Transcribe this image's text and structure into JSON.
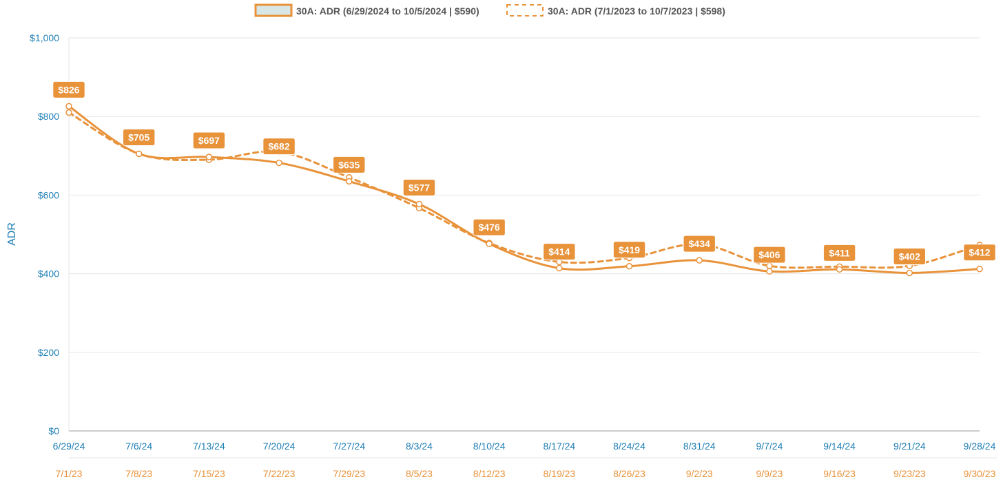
{
  "chart_data": {
    "type": "line",
    "ylabel": "ADR",
    "ylim": [
      0,
      1000
    ],
    "yticks": [
      "$0",
      "$200",
      "$400",
      "$600",
      "$800",
      "$1,000"
    ],
    "yticks_values": [
      0,
      200,
      400,
      600,
      800,
      1000
    ],
    "x_primary": [
      "6/29/24",
      "7/6/24",
      "7/13/24",
      "7/20/24",
      "7/27/24",
      "8/3/24",
      "8/10/24",
      "8/17/24",
      "8/24/24",
      "8/31/24",
      "9/7/24",
      "9/14/24",
      "9/21/24",
      "9/28/24"
    ],
    "x_secondary": [
      "7/1/23",
      "7/8/23",
      "7/15/23",
      "7/22/23",
      "7/29/23",
      "8/5/23",
      "8/12/23",
      "8/19/23",
      "8/26/23",
      "9/2/23",
      "9/9/23",
      "9/16/23",
      "9/23/23",
      "9/30/23"
    ],
    "series": [
      {
        "name": "30A: ADR (6/29/2024 to 10/5/2024 | $590)",
        "style": "solid",
        "values": [
          826,
          705,
          697,
          682,
          635,
          577,
          476,
          414,
          419,
          434,
          406,
          411,
          402,
          412
        ],
        "data_labels": [
          "$826",
          "$705",
          "$697",
          "$682",
          "$635",
          "$577",
          "$476",
          "$414",
          "$419",
          "$434",
          "$406",
          "$411",
          "$402",
          "$412"
        ]
      },
      {
        "name": "30A: ADR (7/1/2023 to 10/7/2023 | $598)",
        "style": "dashed",
        "values": [
          810,
          705,
          690,
          710,
          645,
          567,
          478,
          430,
          440,
          475,
          420,
          418,
          420,
          473
        ]
      }
    ],
    "legend": "top-center",
    "grid": true,
    "colors": {
      "line": "#e8923a",
      "axis_text": "#1f7fb5",
      "secondary_axis_text": "#e8923a",
      "grid": "#e6e6e6",
      "legend_fill": "#d9e6e6"
    }
  }
}
